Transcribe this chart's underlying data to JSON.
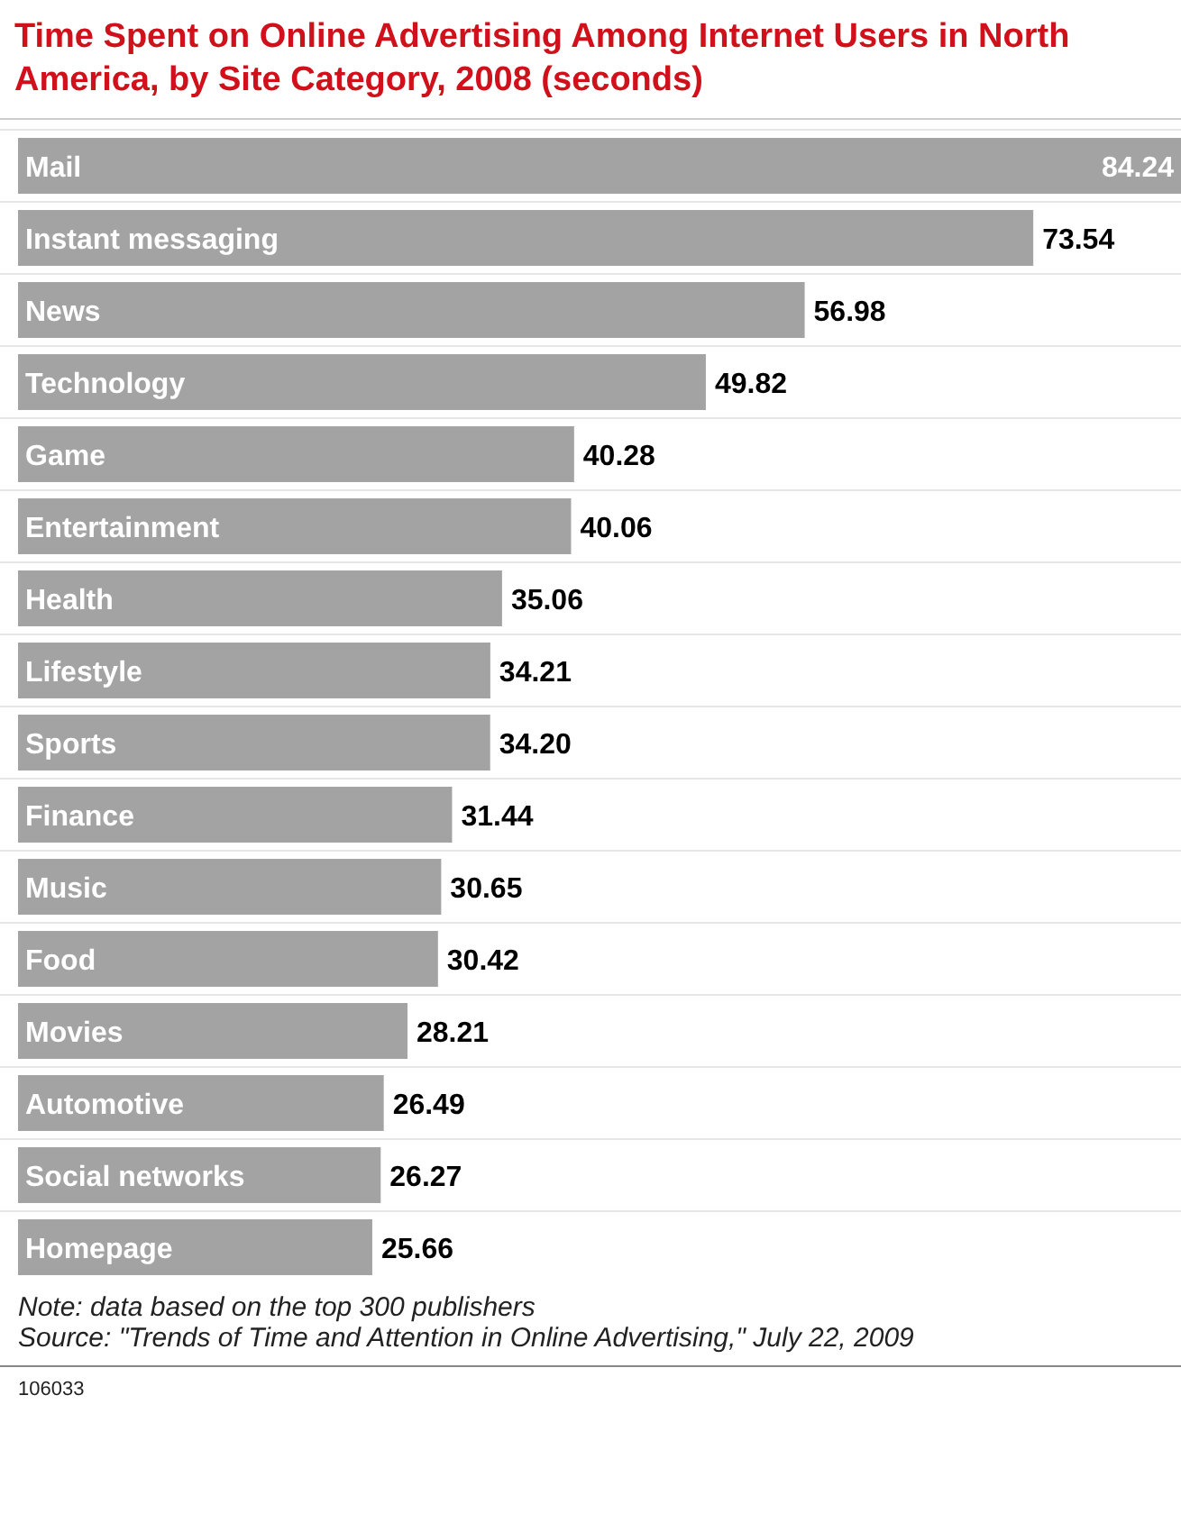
{
  "chart_data": {
    "type": "bar",
    "orientation": "horizontal",
    "title": "Time Spent on Online Advertising Among Internet Users in North America, by Site Category, 2008 (seconds)",
    "categories": [
      "Mail",
      "Instant messaging",
      "News",
      "Technology",
      "Game",
      "Entertainment",
      "Health",
      "Lifestyle",
      "Sports",
      "Finance",
      "Music",
      "Food",
      "Movies",
      "Automotive",
      "Social networks",
      "Homepage"
    ],
    "values": [
      84.24,
      73.54,
      56.98,
      49.82,
      40.28,
      40.06,
      35.06,
      34.21,
      34.2,
      31.44,
      30.65,
      30.42,
      28.21,
      26.49,
      26.27,
      25.66
    ],
    "value_labels": [
      "84.24",
      "73.54",
      "56.98",
      "49.82",
      "40.28",
      "40.06",
      "35.06",
      "34.21",
      "34.20",
      "31.44",
      "30.65",
      "30.42",
      "28.21",
      "26.49",
      "26.27",
      "25.66"
    ],
    "color": "#a3a3a3",
    "annotations": [
      "Note: data based on the top 300 publishers",
      "Source: \"Trends of Time and Attention in Online Advertising,\" July 22, 2009",
      "106033"
    ]
  }
}
